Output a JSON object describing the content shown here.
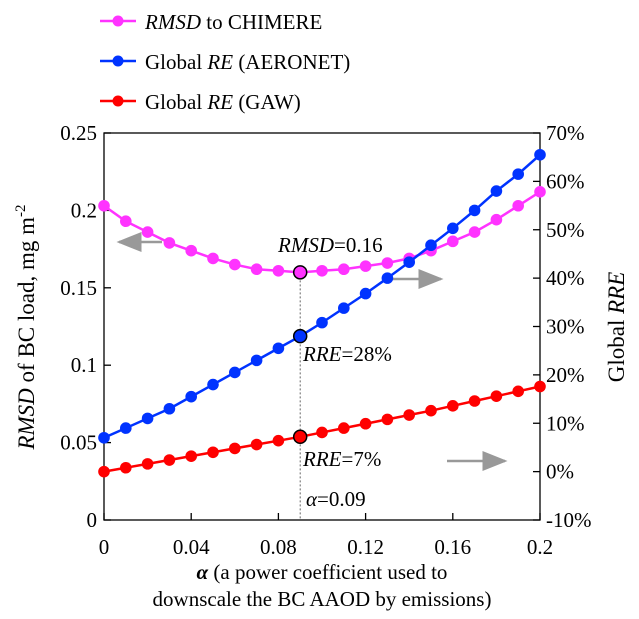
{
  "chart_data": {
    "type": "line",
    "xlabel_line1_bold": "α",
    "xlabel_line1_rest": " (a power coefficient used to",
    "xlabel_line2": "downscale the BC AAOD by emissions)",
    "ylabel_left_italic": "RMSD",
    "ylabel_left_rest": " of BC load, mg m",
    "ylabel_left_sup": "-2",
    "ylabel_right_plain": "Global ",
    "ylabel_right_italic": "RRE",
    "xlim": [
      0,
      0.2
    ],
    "ylim_left": [
      0,
      0.25
    ],
    "ylim_right": [
      -10,
      70
    ],
    "x_ticks": [
      0,
      0.04,
      0.08,
      0.12,
      0.16,
      0.2
    ],
    "x_tick_labels": [
      "0",
      "0.04",
      "0.08",
      "0.12",
      "0.16",
      "0.2"
    ],
    "y_left_ticks": [
      0,
      0.05,
      0.1,
      0.15,
      0.2,
      0.25
    ],
    "y_left_tick_labels": [
      "0",
      "0.05",
      "0.1",
      "0.15",
      "0.2",
      "0.25"
    ],
    "y_right_ticks": [
      -10,
      0,
      10,
      20,
      30,
      40,
      50,
      60,
      70
    ],
    "y_right_tick_labels": [
      "-10%",
      "0%",
      "10%",
      "20%",
      "30%",
      "40%",
      "50%",
      "60%",
      "70%"
    ],
    "x": [
      0,
      0.01,
      0.02,
      0.03,
      0.04,
      0.05,
      0.06,
      0.07,
      0.08,
      0.09,
      0.1,
      0.11,
      0.12,
      0.13,
      0.14,
      0.15,
      0.16,
      0.17,
      0.18,
      0.19,
      0.2
    ],
    "series": [
      {
        "name_italic": "RMSD",
        "name_rest": " to CHIMERE",
        "axis": "left",
        "color": "#ff33ff",
        "values": [
          0.203,
          0.193,
          0.186,
          0.179,
          0.174,
          0.169,
          0.165,
          0.162,
          0.161,
          0.16,
          0.161,
          0.162,
          0.164,
          0.166,
          0.169,
          0.174,
          0.18,
          0.186,
          0.194,
          0.203,
          0.212
        ]
      },
      {
        "name_plain": "Global ",
        "name_italic": "RE",
        "name_rest": " (AERONET)",
        "axis": "right",
        "color": "#0033ff",
        "values": [
          7,
          9,
          11,
          13,
          15.5,
          18,
          20.5,
          23,
          25.5,
          28,
          30.8,
          33.8,
          36.8,
          40,
          43.3,
          46.8,
          50.3,
          54,
          58,
          61.5,
          65.5
        ]
      },
      {
        "name_plain": "Global ",
        "name_italic": "RE",
        "name_rest": " (GAW)",
        "axis": "right",
        "color": "#ff0000",
        "values": [
          0,
          0.8,
          1.6,
          2.4,
          3.2,
          4,
          4.8,
          5.6,
          6.4,
          7.2,
          8.1,
          9,
          9.9,
          10.8,
          11.7,
          12.6,
          13.6,
          14.6,
          15.6,
          16.6,
          17.6
        ]
      }
    ],
    "legend_placement": "top-left",
    "annotations": {
      "rmsd_italic": "RMSD",
      "rmsd_rest": "=0.16",
      "rre28_italic": "RRE",
      "rre28_rest": "=28%",
      "rre7_italic": "RRE",
      "rre7_rest": "=7%",
      "alpha_italic": "α",
      "alpha_rest": "=0.09"
    },
    "marker_x": 0.09,
    "arrow_color": "#999999",
    "grid": false
  }
}
